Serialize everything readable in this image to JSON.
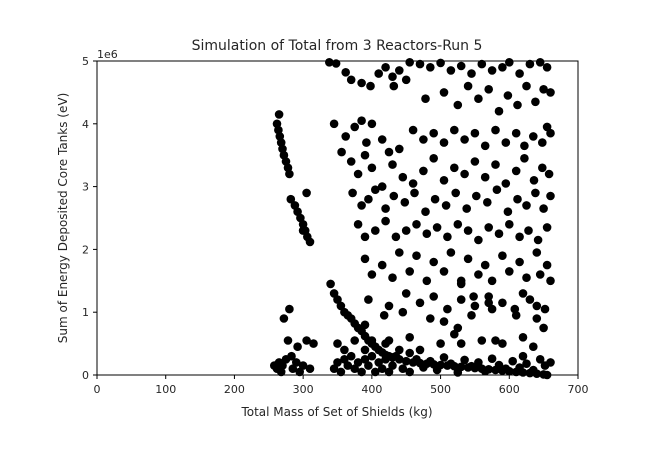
{
  "chart_data": {
    "type": "scatter",
    "title": "Simulation of Total from 3 Reactors-Run 5",
    "xlabel": "Total Mass of Set of Shields (kg)",
    "ylabel": "Sum of Energy Deposited Core Tanks (eV)",
    "y_offset_label": "1e6",
    "xlim": [
      0,
      700
    ],
    "ylim": [
      0,
      5
    ],
    "x_ticks": [
      0,
      100,
      200,
      300,
      400,
      500,
      600,
      700
    ],
    "y_ticks": [
      0,
      1,
      2,
      3,
      4,
      5
    ],
    "grid": false,
    "legend": "none",
    "marker_color": "#000000",
    "series": [
      {
        "points": [
          [
            265,
            4.15
          ],
          [
            262,
            4.0
          ],
          [
            264,
            3.9
          ],
          [
            266,
            3.8
          ],
          [
            268,
            3.7
          ],
          [
            270,
            3.6
          ],
          [
            272,
            3.5
          ],
          [
            275,
            3.4
          ],
          [
            278,
            3.3
          ],
          [
            280,
            3.2
          ],
          [
            282,
            2.8
          ],
          [
            288,
            2.7
          ],
          [
            292,
            2.6
          ],
          [
            296,
            2.5
          ],
          [
            300,
            2.4
          ],
          [
            303,
            2.3
          ],
          [
            306,
            2.2
          ],
          [
            310,
            2.12
          ],
          [
            305,
            2.9
          ],
          [
            300,
            2.3
          ],
          [
            262,
            0.1
          ],
          [
            265,
            0.2
          ],
          [
            268,
            0.05
          ],
          [
            270,
            0.15
          ],
          [
            275,
            0.25
          ],
          [
            272,
            0.9
          ],
          [
            280,
            1.05
          ],
          [
            278,
            0.55
          ],
          [
            285,
            0.1
          ],
          [
            290,
            0.2
          ],
          [
            295,
            0.05
          ],
          [
            300,
            0.15
          ],
          [
            305,
            0.55
          ],
          [
            310,
            0.1
          ],
          [
            315,
            0.5
          ],
          [
            283,
            0.3
          ],
          [
            258,
            0.15
          ],
          [
            292,
            0.45
          ],
          [
            340,
            1.45
          ],
          [
            345,
            1.3
          ],
          [
            350,
            1.2
          ],
          [
            355,
            1.1
          ],
          [
            360,
            1.0
          ],
          [
            365,
            0.95
          ],
          [
            370,
            0.9
          ],
          [
            375,
            0.82
          ],
          [
            380,
            0.75
          ],
          [
            385,
            0.7
          ],
          [
            390,
            0.62
          ],
          [
            395,
            0.55
          ],
          [
            400,
            0.5
          ],
          [
            405,
            0.45
          ],
          [
            410,
            0.4
          ],
          [
            415,
            0.36
          ],
          [
            420,
            0.32
          ],
          [
            425,
            0.3
          ],
          [
            430,
            0.28
          ],
          [
            440,
            0.25
          ],
          [
            450,
            0.22
          ],
          [
            460,
            0.2
          ],
          [
            470,
            0.19
          ],
          [
            480,
            0.18
          ],
          [
            490,
            0.17
          ],
          [
            500,
            0.16
          ],
          [
            510,
            0.15
          ],
          [
            520,
            0.14
          ],
          [
            530,
            0.13
          ],
          [
            540,
            0.12
          ],
          [
            550,
            0.11
          ],
          [
            560,
            0.1
          ],
          [
            570,
            0.09
          ],
          [
            580,
            0.08
          ],
          [
            590,
            0.07
          ],
          [
            600,
            0.06
          ],
          [
            610,
            0.05
          ],
          [
            620,
            0.04
          ],
          [
            630,
            0.03
          ],
          [
            640,
            0.02
          ],
          [
            650,
            0.01
          ],
          [
            655,
            0.0
          ],
          [
            345,
            0.1
          ],
          [
            350,
            0.2
          ],
          [
            355,
            0.05
          ],
          [
            360,
            0.25
          ],
          [
            365,
            0.15
          ],
          [
            370,
            0.3
          ],
          [
            375,
            0.1
          ],
          [
            380,
            0.2
          ],
          [
            385,
            0.05
          ],
          [
            390,
            0.25
          ],
          [
            395,
            0.15
          ],
          [
            400,
            0.3
          ],
          [
            405,
            0.05
          ],
          [
            410,
            0.2
          ],
          [
            415,
            0.1
          ],
          [
            420,
            0.25
          ],
          [
            425,
            0.05
          ],
          [
            430,
            0.15
          ],
          [
            435,
            0.3
          ],
          [
            445,
            0.1
          ],
          [
            455,
            0.05
          ],
          [
            465,
            0.25
          ],
          [
            475,
            0.12
          ],
          [
            485,
            0.22
          ],
          [
            495,
            0.08
          ],
          [
            505,
            0.28
          ],
          [
            515,
            0.18
          ],
          [
            525,
            0.04
          ],
          [
            535,
            0.24
          ],
          [
            545,
            0.14
          ],
          [
            555,
            0.2
          ],
          [
            565,
            0.06
          ],
          [
            575,
            0.26
          ],
          [
            585,
            0.16
          ],
          [
            595,
            0.1
          ],
          [
            605,
            0.22
          ],
          [
            615,
            0.12
          ],
          [
            625,
            0.18
          ],
          [
            635,
            0.08
          ],
          [
            645,
            0.25
          ],
          [
            652,
            0.15
          ],
          [
            660,
            0.2
          ],
          [
            350,
            0.5
          ],
          [
            360,
            0.4
          ],
          [
            390,
            0.8
          ],
          [
            400,
            0.55
          ],
          [
            420,
            0.5
          ],
          [
            440,
            0.4
          ],
          [
            455,
            0.35
          ],
          [
            470,
            0.4
          ],
          [
            500,
            0.5
          ],
          [
            530,
            0.5
          ],
          [
            560,
            0.55
          ],
          [
            590,
            0.5
          ],
          [
            620,
            0.6
          ],
          [
            640,
            0.9
          ],
          [
            650,
            0.75
          ],
          [
            505,
            0.85
          ],
          [
            525,
            0.75
          ],
          [
            545,
            0.95
          ],
          [
            575,
            1.05
          ],
          [
            610,
            0.95
          ],
          [
            375,
            0.55
          ],
          [
            390,
            0.4
          ],
          [
            425,
            0.55
          ],
          [
            455,
            0.6
          ],
          [
            520,
            0.65
          ],
          [
            580,
            0.55
          ],
          [
            620,
            0.3
          ],
          [
            635,
            0.45
          ],
          [
            338,
            4.98
          ],
          [
            348,
            4.96
          ],
          [
            362,
            4.82
          ],
          [
            370,
            4.7
          ],
          [
            385,
            4.65
          ],
          [
            398,
            4.6
          ],
          [
            410,
            4.8
          ],
          [
            420,
            4.9
          ],
          [
            430,
            4.75
          ],
          [
            440,
            4.85
          ],
          [
            455,
            4.98
          ],
          [
            470,
            4.95
          ],
          [
            485,
            4.9
          ],
          [
            500,
            4.97
          ],
          [
            515,
            4.85
          ],
          [
            530,
            4.92
          ],
          [
            545,
            4.8
          ],
          [
            560,
            4.95
          ],
          [
            575,
            4.85
          ],
          [
            590,
            4.9
          ],
          [
            600,
            4.98
          ],
          [
            615,
            4.8
          ],
          [
            630,
            4.95
          ],
          [
            645,
            4.98
          ],
          [
            655,
            4.9
          ],
          [
            432,
            4.6
          ],
          [
            450,
            4.7
          ],
          [
            478,
            4.4
          ],
          [
            505,
            4.5
          ],
          [
            525,
            4.3
          ],
          [
            540,
            4.6
          ],
          [
            555,
            4.4
          ],
          [
            570,
            4.55
          ],
          [
            585,
            4.2
          ],
          [
            598,
            4.45
          ],
          [
            612,
            4.3
          ],
          [
            625,
            4.6
          ],
          [
            638,
            4.35
          ],
          [
            650,
            4.55
          ],
          [
            660,
            4.5
          ],
          [
            345,
            4.0
          ],
          [
            362,
            3.8
          ],
          [
            375,
            3.95
          ],
          [
            385,
            4.05
          ],
          [
            392,
            3.7
          ],
          [
            400,
            4.0
          ],
          [
            415,
            3.75
          ],
          [
            425,
            3.55
          ],
          [
            440,
            3.6
          ],
          [
            460,
            3.9
          ],
          [
            475,
            3.75
          ],
          [
            490,
            3.85
          ],
          [
            505,
            3.7
          ],
          [
            520,
            3.9
          ],
          [
            535,
            3.75
          ],
          [
            550,
            3.85
          ],
          [
            565,
            3.65
          ],
          [
            580,
            3.9
          ],
          [
            595,
            3.7
          ],
          [
            610,
            3.85
          ],
          [
            622,
            3.65
          ],
          [
            635,
            3.8
          ],
          [
            648,
            3.7
          ],
          [
            655,
            3.95
          ],
          [
            660,
            3.85
          ],
          [
            356,
            3.55
          ],
          [
            370,
            3.4
          ],
          [
            380,
            3.2
          ],
          [
            390,
            3.5
          ],
          [
            400,
            3.3
          ],
          [
            415,
            3.0
          ],
          [
            430,
            3.35
          ],
          [
            445,
            3.15
          ],
          [
            460,
            3.05
          ],
          [
            475,
            3.25
          ],
          [
            490,
            3.45
          ],
          [
            505,
            3.1
          ],
          [
            520,
            3.3
          ],
          [
            535,
            3.2
          ],
          [
            550,
            3.4
          ],
          [
            565,
            3.15
          ],
          [
            580,
            3.35
          ],
          [
            595,
            3.05
          ],
          [
            610,
            3.25
          ],
          [
            622,
            3.45
          ],
          [
            636,
            3.1
          ],
          [
            648,
            3.3
          ],
          [
            658,
            3.2
          ],
          [
            372,
            2.9
          ],
          [
            385,
            2.7
          ],
          [
            395,
            2.8
          ],
          [
            405,
            2.95
          ],
          [
            420,
            2.65
          ],
          [
            432,
            2.85
          ],
          [
            448,
            2.75
          ],
          [
            462,
            2.9
          ],
          [
            478,
            2.6
          ],
          [
            492,
            2.8
          ],
          [
            508,
            2.7
          ],
          [
            522,
            2.9
          ],
          [
            538,
            2.65
          ],
          [
            552,
            2.85
          ],
          [
            568,
            2.75
          ],
          [
            582,
            2.95
          ],
          [
            598,
            2.6
          ],
          [
            612,
            2.8
          ],
          [
            625,
            2.7
          ],
          [
            638,
            2.9
          ],
          [
            650,
            2.65
          ],
          [
            660,
            2.85
          ],
          [
            380,
            2.4
          ],
          [
            390,
            2.2
          ],
          [
            405,
            2.3
          ],
          [
            420,
            2.45
          ],
          [
            435,
            2.2
          ],
          [
            450,
            2.3
          ],
          [
            465,
            2.4
          ],
          [
            480,
            2.25
          ],
          [
            495,
            2.35
          ],
          [
            510,
            2.2
          ],
          [
            525,
            2.4
          ],
          [
            540,
            2.3
          ],
          [
            555,
            2.15
          ],
          [
            570,
            2.35
          ],
          [
            585,
            2.25
          ],
          [
            600,
            2.4
          ],
          [
            615,
            2.2
          ],
          [
            628,
            2.3
          ],
          [
            642,
            2.15
          ],
          [
            655,
            2.35
          ],
          [
            390,
            1.85
          ],
          [
            415,
            1.75
          ],
          [
            440,
            1.95
          ],
          [
            465,
            1.9
          ],
          [
            490,
            1.8
          ],
          [
            515,
            1.95
          ],
          [
            540,
            1.85
          ],
          [
            565,
            1.75
          ],
          [
            590,
            1.9
          ],
          [
            615,
            1.8
          ],
          [
            640,
            1.95
          ],
          [
            655,
            1.75
          ],
          [
            400,
            1.6
          ],
          [
            430,
            1.55
          ],
          [
            455,
            1.65
          ],
          [
            480,
            1.5
          ],
          [
            505,
            1.65
          ],
          [
            530,
            1.45
          ],
          [
            555,
            1.6
          ],
          [
            575,
            1.5
          ],
          [
            600,
            1.65
          ],
          [
            625,
            1.55
          ],
          [
            645,
            1.6
          ],
          [
            660,
            1.5
          ],
          [
            530,
            1.5
          ],
          [
            548,
            1.25
          ],
          [
            570,
            1.15
          ],
          [
            620,
            1.3
          ],
          [
            640,
            1.1
          ],
          [
            608,
            1.05
          ],
          [
            395,
            1.2
          ],
          [
            425,
            1.1
          ],
          [
            450,
            1.3
          ],
          [
            470,
            1.15
          ],
          [
            490,
            1.25
          ],
          [
            510,
            1.05
          ],
          [
            530,
            1.2
          ],
          [
            550,
            1.1
          ],
          [
            570,
            1.25
          ],
          [
            590,
            1.15
          ],
          [
            630,
            1.2
          ],
          [
            652,
            1.05
          ],
          [
            418,
            0.95
          ],
          [
            445,
            1.0
          ],
          [
            485,
            0.9
          ]
        ]
      }
    ]
  }
}
